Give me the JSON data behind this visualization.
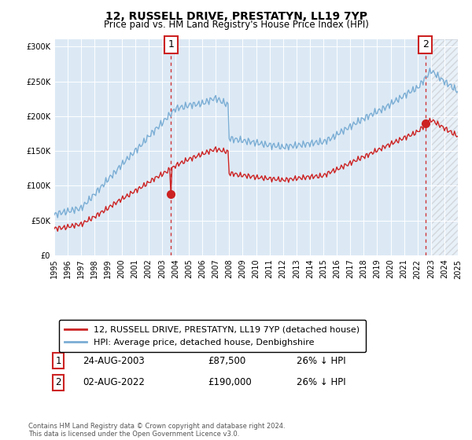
{
  "title": "12, RUSSELL DRIVE, PRESTATYN, LL19 7YP",
  "subtitle": "Price paid vs. HM Land Registry's House Price Index (HPI)",
  "legend_line1": "12, RUSSELL DRIVE, PRESTATYN, LL19 7YP (detached house)",
  "legend_line2": "HPI: Average price, detached house, Denbighshire",
  "annotation1_date": "24-AUG-2003",
  "annotation1_price": "£87,500",
  "annotation1_hpi": "26% ↓ HPI",
  "annotation2_date": "02-AUG-2022",
  "annotation2_price": "£190,000",
  "annotation2_hpi": "26% ↓ HPI",
  "footer": "Contains HM Land Registry data © Crown copyright and database right 2024.\nThis data is licensed under the Open Government Licence v3.0.",
  "hpi_color": "#7aadd4",
  "price_color": "#cc2222",
  "background_color": "#dce9f5",
  "ylim": [
    0,
    310000
  ],
  "yticks": [
    0,
    50000,
    100000,
    150000,
    200000,
    250000,
    300000
  ],
  "xstart": 1995,
  "xend": 2025,
  "sale1_year": 2003.65,
  "sale1_price": 87500,
  "sale2_year": 2022.58,
  "sale2_price": 190000
}
